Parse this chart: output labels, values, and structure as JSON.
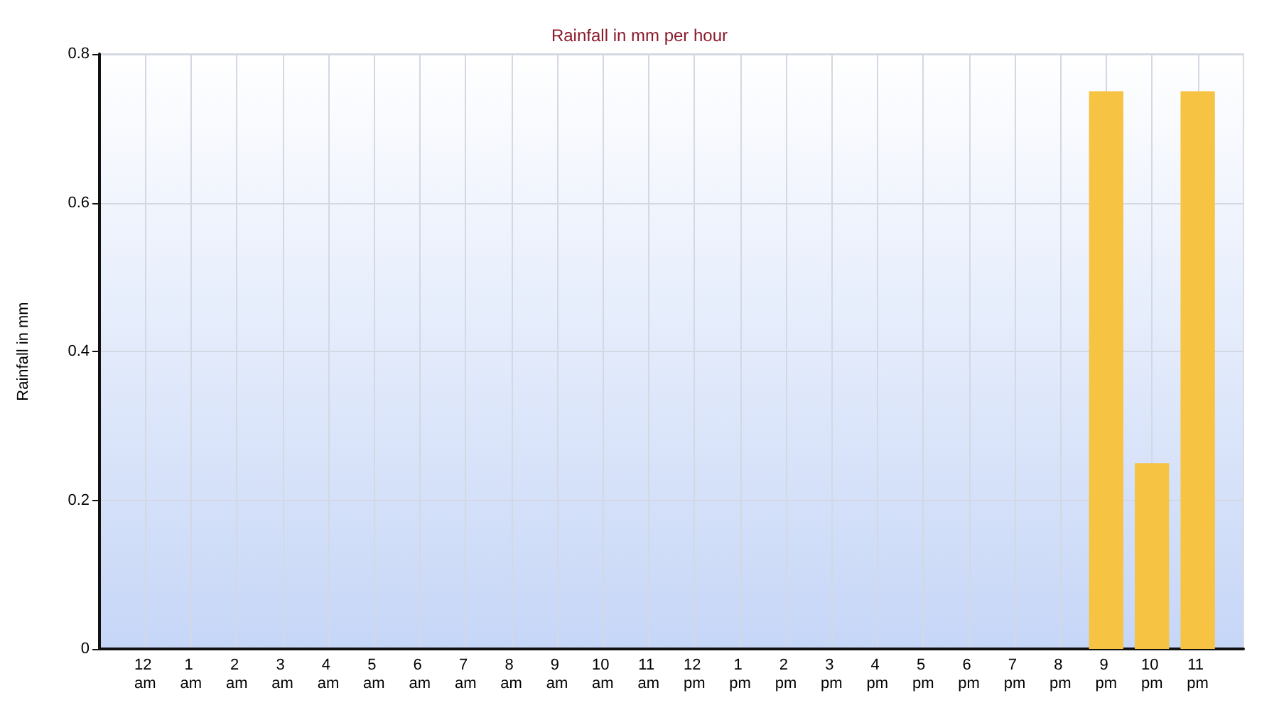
{
  "chart_data": {
    "type": "bar",
    "title": "Rainfall in mm per hour",
    "ylabel": "Rainfall in mm",
    "categories": [
      "12 am",
      "1 am",
      "2 am",
      "3 am",
      "4 am",
      "5 am",
      "6 am",
      "7 am",
      "8 am",
      "9 am",
      "10 am",
      "11 am",
      "12 pm",
      "1 pm",
      "2 pm",
      "3 pm",
      "4 pm",
      "5 pm",
      "6 pm",
      "7 pm",
      "8 pm",
      "9 pm",
      "10 pm",
      "11 pm"
    ],
    "values": [
      0,
      0,
      0,
      0,
      0,
      0,
      0,
      0,
      0,
      0,
      0,
      0,
      0,
      0,
      0,
      0,
      0,
      0,
      0,
      0,
      0,
      0.75,
      0.25,
      0.75
    ],
    "color": "#f6c343",
    "ylim": [
      0,
      0.8
    ],
    "yticks": [
      0,
      0.2,
      0.4,
      0.6,
      0.8
    ],
    "grid": true
  }
}
